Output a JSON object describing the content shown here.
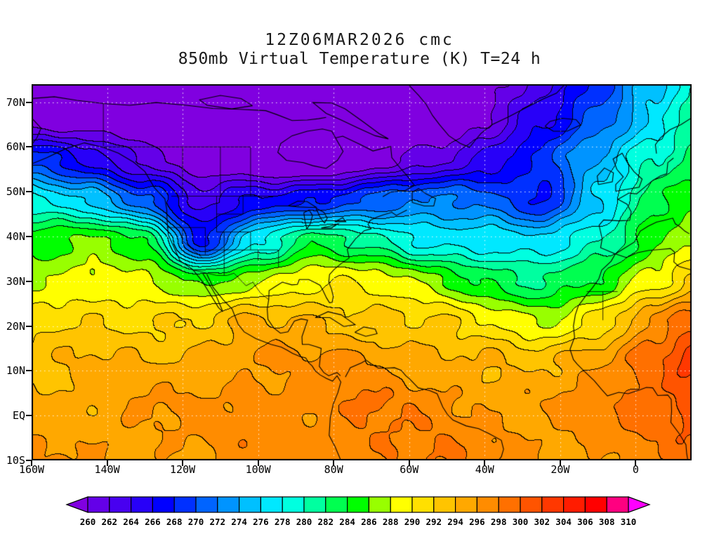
{
  "page": {
    "background": "#ffffff"
  },
  "title": {
    "line1": "12Z06MAR2026 cmc",
    "line2": "850mb Virtual Temperature (K) T=24 h"
  },
  "chart_data": {
    "type": "heatmap",
    "title": "12Z06MAR2026 cmc",
    "subtitle": "850mb Virtual Temperature (K) T=24 h",
    "model": "cmc",
    "init_time": "12Z06MAR2026",
    "forecast": "T=24 h",
    "variable": "850mb Virtual Temperature",
    "units": "K",
    "contour_interval": 2,
    "grid_lines": "dotted lat/lon graticule every 10 deg lat / 20 deg lon",
    "x_axis": {
      "tick_labels": [
        "160W",
        "140W",
        "120W",
        "100W",
        "80W",
        "60W",
        "40W",
        "20W",
        "0"
      ],
      "tick_values": [
        -160,
        -140,
        -120,
        -100,
        -80,
        -60,
        -40,
        -20,
        0
      ],
      "range_lon": [
        -160,
        14.8
      ]
    },
    "y_axis": {
      "tick_labels": [
        "70N",
        "60N",
        "50N",
        "40N",
        "30N",
        "20N",
        "10N",
        "EQ",
        "10S"
      ],
      "tick_values": [
        70,
        60,
        50,
        40,
        30,
        20,
        10,
        0,
        -10
      ],
      "range_lat": [
        -10,
        74
      ]
    },
    "colorbar": {
      "levels": [
        260,
        262,
        264,
        266,
        268,
        270,
        272,
        274,
        276,
        278,
        280,
        282,
        284,
        286,
        288,
        290,
        292,
        294,
        296,
        298,
        300,
        302,
        304,
        306,
        308,
        310
      ],
      "tick_labels": [
        "260",
        "262",
        "264",
        "266",
        "268",
        "270",
        "272",
        "274",
        "276",
        "278",
        "280",
        "282",
        "284",
        "286",
        "288",
        "290",
        "292",
        "294",
        "296",
        "298",
        "300",
        "302",
        "304",
        "306",
        "308",
        "310"
      ],
      "colors": [
        "#8000E0",
        "#6400E8",
        "#4800F0",
        "#2800F8",
        "#0000FF",
        "#0030FF",
        "#0064FF",
        "#0094FF",
        "#00C0FF",
        "#00E8FF",
        "#00FFE0",
        "#00FFA0",
        "#00FF50",
        "#00FF00",
        "#98FF00",
        "#FFFF00",
        "#FFE000",
        "#FFC400",
        "#FFA800",
        "#FF8C00",
        "#FF7000",
        "#FF5400",
        "#FF3800",
        "#FF1C00",
        "#FF0000",
        "#FF0080",
        "#FF00FF"
      ]
    },
    "field": {
      "comment": "estimated 850mb virtual temperature (K) read from the plot colors",
      "lons": [
        -160,
        -145,
        -130,
        -115,
        -100,
        -85,
        -70,
        -55,
        -40,
        -25,
        -10,
        5,
        15
      ],
      "lats": [
        75,
        66,
        57,
        48,
        39,
        30,
        21,
        12,
        2,
        -10
      ],
      "values": [
        [
          257,
          256,
          255,
          254,
          254,
          254,
          255,
          256,
          258,
          263,
          269,
          275,
          279
        ],
        [
          259,
          258,
          257,
          256,
          255,
          254,
          256,
          257,
          260,
          265,
          271,
          277,
          281
        ],
        [
          270,
          266,
          261,
          258,
          257,
          256,
          258,
          261,
          265,
          269,
          274,
          280,
          283
        ],
        [
          278,
          276,
          271,
          263,
          266,
          268,
          271,
          272,
          271,
          268,
          276,
          283,
          285
        ],
        [
          285,
          286,
          284,
          268,
          278,
          283,
          281,
          278,
          277,
          276,
          280,
          286,
          288
        ],
        [
          288,
          289,
          288,
          285,
          288,
          290,
          289,
          287,
          284,
          282,
          284,
          289,
          293
        ],
        [
          291,
          292,
          292,
          292,
          294,
          294,
          293,
          292,
          290,
          288,
          291,
          296,
          299
        ],
        [
          293,
          294,
          294,
          295,
          296,
          296,
          296,
          295,
          294,
          293,
          296,
          300,
          303
        ],
        [
          295,
          295,
          296,
          296,
          297,
          297,
          298,
          297,
          296,
          296,
          297,
          299,
          301
        ],
        [
          296,
          296,
          296,
          296,
          297,
          297,
          298,
          298,
          297,
          296,
          296,
          297,
          299
        ]
      ]
    }
  }
}
